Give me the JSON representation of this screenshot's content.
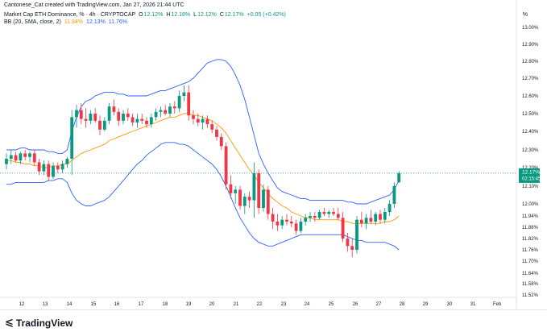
{
  "header": {
    "caption": "Cantonese_Cat created with TradingView.com, Jan 27, 2026 21:44 UTC",
    "symbol": "Market Cap ETH Dominance, % · 4h · CRYPTOCAP",
    "o_label": "O",
    "o_value": "12.12%",
    "h_label": "H",
    "h_value": "12.18%",
    "l_label": "L",
    "l_value": "12.12%",
    "c_label": "C",
    "c_value": "12.17%",
    "change": "+0.05 (+0.42%)",
    "bb_label": "BB (20, SMA, close, 2)",
    "bb_basis": "11.94%",
    "bb_upper": "12.13%",
    "bb_lower": "11.76%",
    "percent_sign": "%"
  },
  "price_tag": {
    "value": "12.17%",
    "countdown": "02:15:45"
  },
  "brand": {
    "name": "TradingView"
  },
  "colors": {
    "up": "#089981",
    "down": "#f23645",
    "bb_basis": "#ff9800",
    "bb_band": "#2962ff",
    "current_line": "#089981"
  },
  "chart_data": {
    "type": "candlestick",
    "timeframe": "4h",
    "y_unit": "%",
    "ylim": [
      11.52,
      13.0
    ],
    "y_ticks": [
      "13.00%",
      "12.90%",
      "12.80%",
      "12.70%",
      "12.60%",
      "12.50%",
      "12.40%",
      "12.30%",
      "12.20%",
      "12.10%",
      "12.00%",
      "11.94%",
      "11.88%",
      "11.82%",
      "11.76%",
      "11.70%",
      "11.64%",
      "11.58%",
      "11.52%"
    ],
    "x_ticks": [
      "12",
      "13",
      "14",
      "15",
      "16",
      "17",
      "18",
      "19",
      "20",
      "21",
      "22",
      "23",
      "24",
      "25",
      "26",
      "27",
      "28",
      "29",
      "30",
      "31",
      "Feb"
    ],
    "current_price": 12.17,
    "candles": [
      [
        12.22,
        12.28,
        12.19,
        12.25
      ],
      [
        12.25,
        12.3,
        12.22,
        12.27
      ],
      [
        12.27,
        12.29,
        12.23,
        12.24
      ],
      [
        12.24,
        12.29,
        12.22,
        12.28
      ],
      [
        12.28,
        12.3,
        12.24,
        12.26
      ],
      [
        12.26,
        12.29,
        12.23,
        12.28
      ],
      [
        12.28,
        12.3,
        12.21,
        12.23
      ],
      [
        12.23,
        12.25,
        12.16,
        12.18
      ],
      [
        12.18,
        12.24,
        12.16,
        12.22
      ],
      [
        12.22,
        12.24,
        12.13,
        12.15
      ],
      [
        12.15,
        12.23,
        12.14,
        12.21
      ],
      [
        12.21,
        12.23,
        12.17,
        12.19
      ],
      [
        12.19,
        12.24,
        12.17,
        12.22
      ],
      [
        12.22,
        12.26,
        12.2,
        12.25
      ],
      [
        12.25,
        12.52,
        12.16,
        12.48
      ],
      [
        12.48,
        12.55,
        12.42,
        12.52
      ],
      [
        12.52,
        12.56,
        12.44,
        12.47
      ],
      [
        12.47,
        12.53,
        12.42,
        12.46
      ],
      [
        12.46,
        12.52,
        12.44,
        12.5
      ],
      [
        12.5,
        12.53,
        12.45,
        12.46
      ],
      [
        12.46,
        12.49,
        12.38,
        12.41
      ],
      [
        12.41,
        12.48,
        12.4,
        12.46
      ],
      [
        12.46,
        12.56,
        12.44,
        12.54
      ],
      [
        12.54,
        12.58,
        12.49,
        12.51
      ],
      [
        12.51,
        12.53,
        12.43,
        12.46
      ],
      [
        12.46,
        12.52,
        12.44,
        12.5
      ],
      [
        12.5,
        12.53,
        12.46,
        12.48
      ],
      [
        12.48,
        12.5,
        12.43,
        12.45
      ],
      [
        12.45,
        12.5,
        12.42,
        12.47
      ],
      [
        12.47,
        12.5,
        12.44,
        12.46
      ],
      [
        12.46,
        12.48,
        12.42,
        12.44
      ],
      [
        12.44,
        12.5,
        12.42,
        12.48
      ],
      [
        12.48,
        12.53,
        12.46,
        12.51
      ],
      [
        12.51,
        12.54,
        12.48,
        12.52
      ],
      [
        12.52,
        12.55,
        12.49,
        12.5
      ],
      [
        12.5,
        12.56,
        12.48,
        12.54
      ],
      [
        12.54,
        12.57,
        12.5,
        12.53
      ],
      [
        12.53,
        12.63,
        12.51,
        12.6
      ],
      [
        12.6,
        12.66,
        12.57,
        12.62
      ],
      [
        12.62,
        12.66,
        12.46,
        12.49
      ],
      [
        12.49,
        12.52,
        12.44,
        12.47
      ],
      [
        12.47,
        12.5,
        12.43,
        12.45
      ],
      [
        12.45,
        12.49,
        12.41,
        12.47
      ],
      [
        12.47,
        12.49,
        12.42,
        12.44
      ],
      [
        12.44,
        12.46,
        12.39,
        12.41
      ],
      [
        12.41,
        12.43,
        12.35,
        12.37
      ],
      [
        12.37,
        12.39,
        12.3,
        12.32
      ],
      [
        12.32,
        12.34,
        12.08,
        12.11
      ],
      [
        12.11,
        12.16,
        12.03,
        12.06
      ],
      [
        12.06,
        12.1,
        12.0,
        12.08
      ],
      [
        12.08,
        12.1,
        11.97,
        11.99
      ],
      [
        11.99,
        12.06,
        11.95,
        12.04
      ],
      [
        12.04,
        12.07,
        11.98,
        12.02
      ],
      [
        12.02,
        12.23,
        11.93,
        12.17
      ],
      [
        12.17,
        12.19,
        11.95,
        11.98
      ],
      [
        11.98,
        12.11,
        11.96,
        12.08
      ],
      [
        12.08,
        12.1,
        11.92,
        11.95
      ],
      [
        11.95,
        11.98,
        11.87,
        11.91
      ],
      [
        11.91,
        11.95,
        11.86,
        11.89
      ],
      [
        11.89,
        11.94,
        11.87,
        11.92
      ],
      [
        11.92,
        11.95,
        11.89,
        11.91
      ],
      [
        11.91,
        11.94,
        11.88,
        11.9
      ],
      [
        11.9,
        11.92,
        11.84,
        11.86
      ],
      [
        11.86,
        11.93,
        11.85,
        11.91
      ],
      [
        11.91,
        11.95,
        11.89,
        11.93
      ],
      [
        11.93,
        11.96,
        11.91,
        11.94
      ],
      [
        11.94,
        11.96,
        11.91,
        11.93
      ],
      [
        11.93,
        11.97,
        11.92,
        11.96
      ],
      [
        11.96,
        11.98,
        11.94,
        11.95
      ],
      [
        11.95,
        11.97,
        11.93,
        11.96
      ],
      [
        11.96,
        11.98,
        11.94,
        11.95
      ],
      [
        11.95,
        11.98,
        11.92,
        11.93
      ],
      [
        11.93,
        11.96,
        11.8,
        11.82
      ],
      [
        11.82,
        11.85,
        11.75,
        11.78
      ],
      [
        11.78,
        11.82,
        11.72,
        11.76
      ],
      [
        11.76,
        11.94,
        11.74,
        11.92
      ],
      [
        11.92,
        11.96,
        11.88,
        11.9
      ],
      [
        11.9,
        11.95,
        11.87,
        11.93
      ],
      [
        11.93,
        11.97,
        11.9,
        11.91
      ],
      [
        11.91,
        11.96,
        11.89,
        11.95
      ],
      [
        11.95,
        11.97,
        11.9,
        11.92
      ],
      [
        11.92,
        11.98,
        11.9,
        11.96
      ],
      [
        11.96,
        12.02,
        11.94,
        12.0
      ],
      [
        12.0,
        12.12,
        11.98,
        12.1
      ],
      [
        12.12,
        12.18,
        12.12,
        12.17
      ]
    ],
    "bb_basis": [
      12.24,
      12.24,
      12.23,
      12.23,
      12.22,
      12.22,
      12.21,
      12.21,
      12.2,
      12.2,
      12.21,
      12.21,
      12.22,
      12.22,
      12.24,
      12.26,
      12.28,
      12.29,
      12.3,
      12.31,
      12.32,
      12.33,
      12.35,
      12.36,
      12.37,
      12.38,
      12.39,
      12.4,
      12.41,
      12.42,
      12.43,
      12.44,
      12.45,
      12.46,
      12.47,
      12.48,
      12.48,
      12.49,
      12.5,
      12.5,
      12.49,
      12.49,
      12.48,
      12.47,
      12.46,
      12.44,
      12.42,
      12.39,
      12.35,
      12.31,
      12.27,
      12.23,
      12.19,
      12.16,
      12.12,
      12.09,
      12.06,
      12.03,
      12.01,
      11.99,
      11.98,
      11.96,
      11.95,
      11.94,
      11.93,
      11.93,
      11.92,
      11.92,
      11.92,
      11.92,
      11.92,
      11.92,
      11.91,
      11.91,
      11.9,
      11.9,
      11.9,
      11.9,
      11.9,
      11.9,
      11.9,
      11.91,
      11.91,
      11.92,
      11.94
    ],
    "bb_upper": [
      12.3,
      12.3,
      12.3,
      12.31,
      12.31,
      12.3,
      12.3,
      12.3,
      12.3,
      12.29,
      12.29,
      12.28,
      12.28,
      12.3,
      12.4,
      12.48,
      12.54,
      12.57,
      12.58,
      12.6,
      12.61,
      12.62,
      12.62,
      12.62,
      12.61,
      12.61,
      12.6,
      12.6,
      12.6,
      12.6,
      12.6,
      12.61,
      12.62,
      12.63,
      12.63,
      12.64,
      12.65,
      12.66,
      12.67,
      12.68,
      12.7,
      12.73,
      12.76,
      12.79,
      12.8,
      12.81,
      12.81,
      12.8,
      12.77,
      12.72,
      12.66,
      12.58,
      12.48,
      12.38,
      12.28,
      12.22,
      12.17,
      12.13,
      12.09,
      12.07,
      12.06,
      12.05,
      12.04,
      12.03,
      12.03,
      12.02,
      12.02,
      12.02,
      12.02,
      12.02,
      12.02,
      12.02,
      12.02,
      12.01,
      12.01,
      12.0,
      12.0,
      12.0,
      12.01,
      12.02,
      12.03,
      12.04,
      12.05,
      12.08,
      12.13
    ],
    "bb_lower": [
      12.11,
      12.11,
      12.12,
      12.12,
      12.12,
      12.12,
      12.12,
      12.12,
      12.12,
      12.13,
      12.13,
      12.14,
      12.14,
      12.12,
      12.06,
      12.02,
      12.0,
      11.99,
      11.99,
      12.0,
      12.01,
      12.02,
      12.04,
      12.07,
      12.1,
      12.13,
      12.16,
      12.19,
      12.22,
      12.24,
      12.27,
      12.29,
      12.31,
      12.33,
      12.34,
      12.34,
      12.34,
      12.33,
      12.33,
      12.32,
      12.3,
      12.28,
      12.26,
      12.24,
      12.22,
      12.19,
      12.15,
      12.1,
      12.04,
      11.98,
      11.93,
      11.89,
      11.85,
      11.82,
      11.8,
      11.79,
      11.78,
      11.78,
      11.79,
      11.8,
      11.81,
      11.82,
      11.83,
      11.84,
      11.84,
      11.84,
      11.84,
      11.84,
      11.84,
      11.84,
      11.84,
      11.84,
      11.84,
      11.83,
      11.82,
      11.81,
      11.81,
      11.8,
      11.8,
      11.8,
      11.8,
      11.8,
      11.79,
      11.78,
      11.76
    ]
  }
}
